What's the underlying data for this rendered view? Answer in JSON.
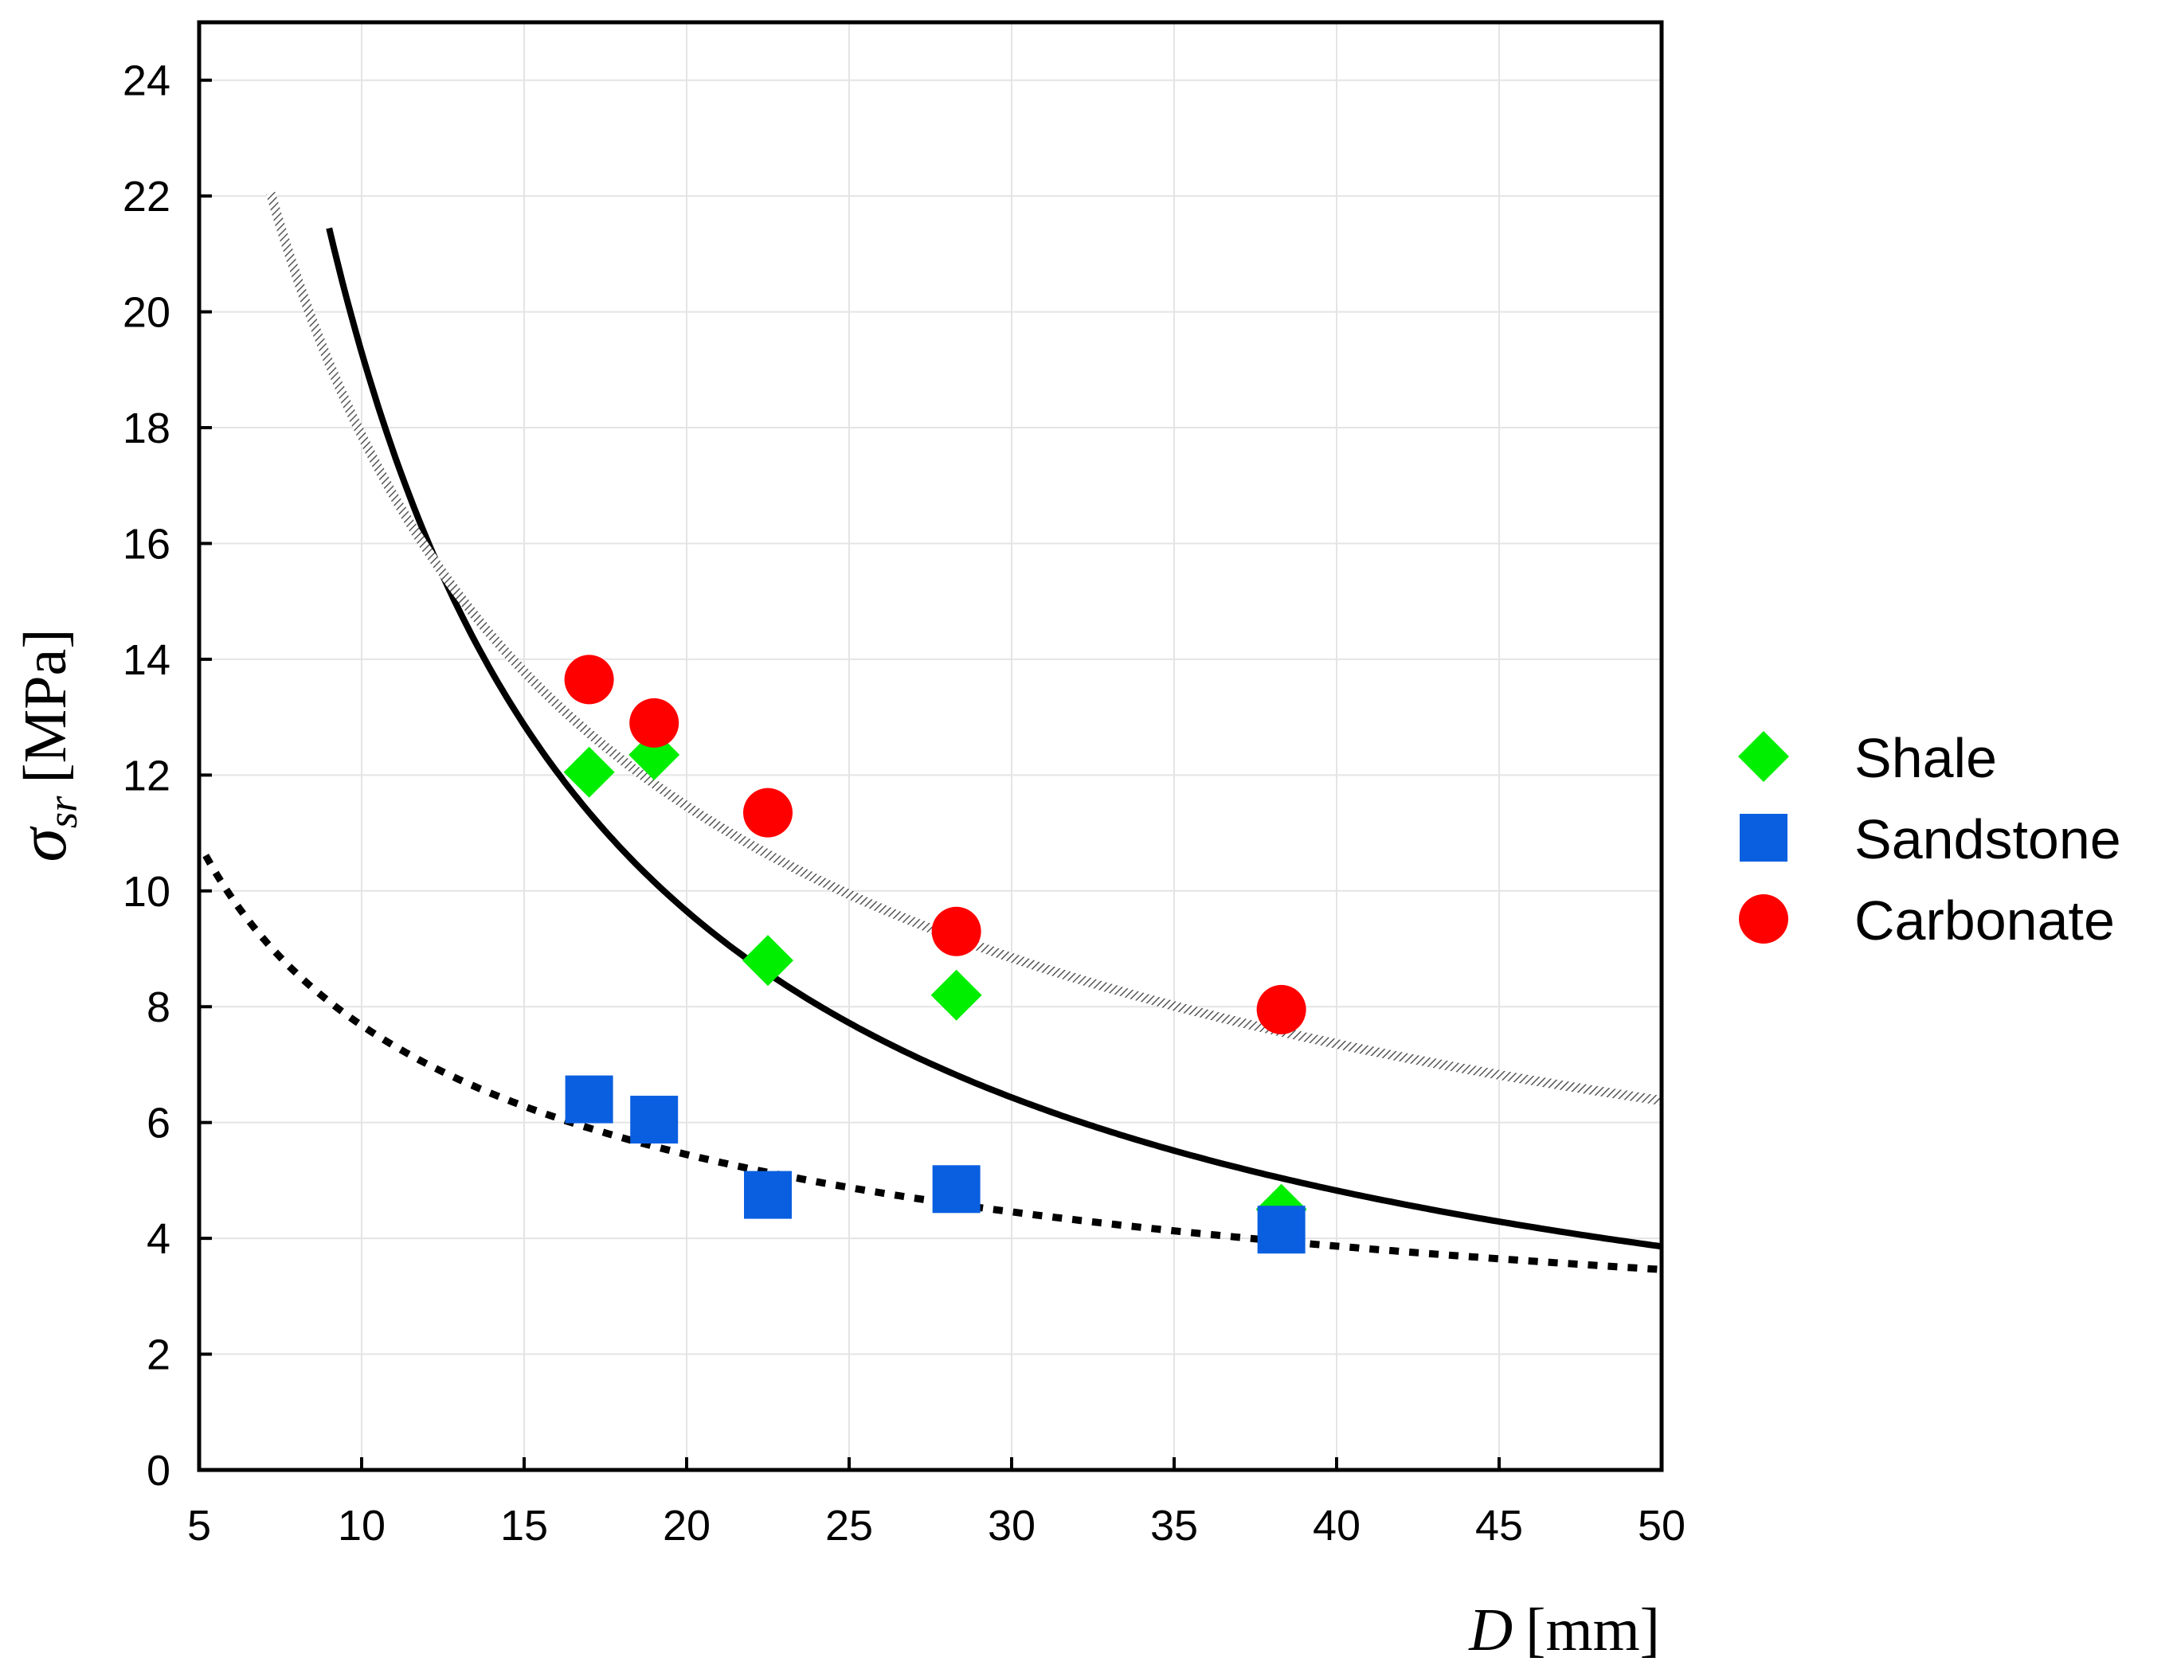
{
  "chart_data": {
    "type": "scatter",
    "title": "",
    "xlabel": {
      "symbol": "D",
      "unit": "[mm]"
    },
    "ylabel": {
      "symbol": "σ",
      "subscript": "sr",
      "unit": "[MPa]"
    },
    "xlim": [
      5,
      50
    ],
    "ylim": [
      0,
      25
    ],
    "xticks": [
      5,
      10,
      15,
      20,
      25,
      30,
      35,
      40,
      45,
      50
    ],
    "yticks": [
      0,
      2,
      4,
      6,
      8,
      10,
      12,
      14,
      16,
      18,
      20,
      22,
      24
    ],
    "grid": true,
    "legend_position": "right",
    "series": [
      {
        "name": "Shale",
        "marker": "diamond",
        "color": "#00ee00",
        "points": [
          [
            17.0,
            12.05
          ],
          [
            19.0,
            12.35
          ],
          [
            22.5,
            8.8
          ],
          [
            28.3,
            8.2
          ],
          [
            38.3,
            4.5
          ]
        ]
      },
      {
        "name": "Sandstone",
        "marker": "square",
        "color": "#0a5fe0",
        "points": [
          [
            17.0,
            6.4
          ],
          [
            19.0,
            6.05
          ],
          [
            22.5,
            4.75
          ],
          [
            28.3,
            4.85
          ],
          [
            38.3,
            4.15
          ]
        ]
      },
      {
        "name": "Carbonate",
        "marker": "circle",
        "color": "#ff0000",
        "points": [
          [
            17.0,
            13.65
          ],
          [
            19.0,
            12.9
          ],
          [
            22.5,
            11.35
          ],
          [
            28.3,
            9.3
          ],
          [
            38.3,
            7.95
          ]
        ]
      }
    ],
    "fit_curves": [
      {
        "style": "solid",
        "color": "#000000",
        "coef": 193.0,
        "exponent": 1.0,
        "x_range": [
          9.0,
          50
        ]
      },
      {
        "style": "hatched",
        "color": "#888888",
        "coef": 78.0,
        "exponent": 0.64,
        "x_range": [
          7.2,
          50
        ]
      },
      {
        "style": "dotted",
        "color": "#000000",
        "coef": 24.0,
        "exponent": 0.495,
        "x_range": [
          5.2,
          50
        ]
      }
    ]
  }
}
